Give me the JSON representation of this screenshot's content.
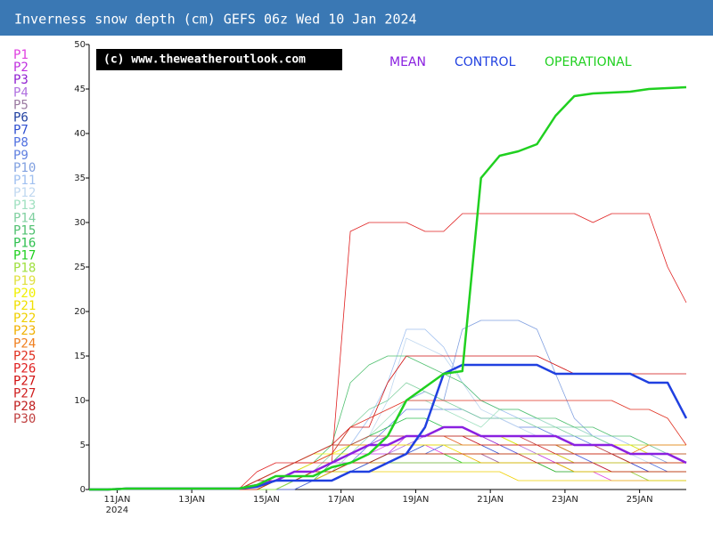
{
  "chart_data": {
    "type": "line",
    "title": "Inverness snow depth (cm) GEFS 06z Wed 10 Jan 2024",
    "watermark": "(c) www.theweatheroutlook.com",
    "year_label": "2024",
    "xlim": [
      10.25,
      26.25
    ],
    "xticks": [
      {
        "value": 11,
        "label": "11JAN"
      },
      {
        "value": 13,
        "label": "13JAN"
      },
      {
        "value": 15,
        "label": "15JAN"
      },
      {
        "value": 17,
        "label": "17JAN"
      },
      {
        "value": 19,
        "label": "19JAN"
      },
      {
        "value": 21,
        "label": "21JAN"
      },
      {
        "value": 23,
        "label": "23JAN"
      },
      {
        "value": 25,
        "label": "25JAN"
      }
    ],
    "ylim": [
      0,
      50
    ],
    "yticks": [
      0,
      5,
      10,
      15,
      20,
      25,
      30,
      35,
      40,
      45,
      50
    ],
    "x": [
      10.25,
      10.75,
      11.25,
      11.75,
      12.25,
      12.75,
      13.25,
      13.75,
      14.25,
      14.75,
      15.25,
      15.75,
      16.25,
      16.75,
      17.25,
      17.75,
      18.25,
      18.75,
      19.25,
      19.75,
      20.25,
      20.75,
      21.25,
      21.75,
      22.25,
      22.75,
      23.25,
      23.75,
      24.25,
      24.75,
      25.25,
      25.75,
      26.25
    ],
    "members": [
      {
        "name": "P1",
        "color": "#e040e0",
        "values": [
          0,
          0,
          0,
          0,
          0,
          0,
          0,
          0,
          0,
          0,
          1,
          1,
          2,
          3,
          4,
          4,
          5,
          5,
          5,
          4,
          4,
          4,
          3,
          3,
          3,
          2,
          2,
          2,
          1,
          1,
          1,
          1,
          1
        ]
      },
      {
        "name": "P2",
        "color": "#c030e0",
        "values": [
          0,
          0,
          0,
          0,
          0,
          0,
          0,
          0,
          0,
          1,
          1,
          2,
          2,
          3,
          3,
          4,
          4,
          6,
          6,
          6,
          5,
          5,
          5,
          4,
          4,
          3,
          3,
          3,
          2,
          2,
          2,
          2,
          2
        ]
      },
      {
        "name": "P3",
        "color": "#9020d0",
        "values": [
          0,
          0,
          0,
          0,
          0,
          0,
          0,
          0,
          0,
          0,
          1,
          2,
          2,
          3,
          5,
          5,
          6,
          6,
          6,
          6,
          6,
          6,
          5,
          5,
          5,
          5,
          4,
          4,
          4,
          3,
          3,
          3,
          3
        ]
      },
      {
        "name": "P4",
        "color": "#b070e0",
        "values": [
          0,
          0,
          0,
          0,
          0,
          0,
          0,
          0,
          0,
          0,
          0,
          1,
          2,
          2,
          3,
          3,
          4,
          5,
          6,
          6,
          6,
          5,
          5,
          5,
          4,
          4,
          4,
          3,
          3,
          3,
          2,
          2,
          2
        ]
      },
      {
        "name": "P5",
        "color": "#9a7aa0",
        "values": [
          0,
          0,
          0,
          0,
          0,
          0,
          0,
          0,
          0,
          0,
          0,
          0,
          1,
          1,
          2,
          3,
          3,
          4,
          4,
          4,
          4,
          4,
          3,
          3,
          3,
          3,
          2,
          2,
          2,
          2,
          1,
          1,
          1
        ]
      },
      {
        "name": "P6",
        "color": "#2040a0",
        "values": [
          0,
          0,
          0,
          0,
          0,
          0,
          0,
          0,
          0,
          0,
          1,
          1,
          2,
          2,
          2,
          3,
          3,
          3,
          3,
          3,
          3,
          3,
          3,
          3,
          3,
          3,
          3,
          3,
          3,
          3,
          3,
          3,
          3
        ]
      },
      {
        "name": "P7",
        "color": "#3050d0",
        "values": [
          0,
          0,
          0,
          0,
          0,
          0,
          0,
          0,
          0,
          0,
          0,
          1,
          1,
          2,
          3,
          3,
          4,
          4,
          5,
          5,
          5,
          5,
          4,
          4,
          4,
          4,
          3,
          3,
          3,
          3,
          2,
          2,
          2
        ]
      },
      {
        "name": "P8",
        "color": "#5070e0",
        "values": [
          0,
          0,
          0,
          0,
          0,
          0,
          0,
          0,
          0,
          0,
          0,
          0,
          1,
          2,
          2,
          3,
          3,
          4,
          4,
          5,
          5,
          5,
          5,
          4,
          4,
          4,
          4,
          3,
          3,
          3,
          3,
          2,
          2
        ]
      },
      {
        "name": "P9",
        "color": "#6080e0",
        "values": [
          0,
          0,
          0,
          0,
          0,
          0,
          0,
          0,
          0,
          0,
          1,
          1,
          1,
          2,
          3,
          5,
          7,
          9,
          9,
          9,
          9,
          8,
          8,
          7,
          7,
          6,
          6,
          5,
          5,
          5,
          4,
          4,
          4
        ]
      },
      {
        "name": "P10",
        "color": "#80a0e0",
        "values": [
          0,
          0,
          0,
          0,
          0,
          0,
          0,
          0,
          0,
          0,
          0,
          1,
          1,
          2,
          3,
          4,
          6,
          10,
          11,
          10,
          18,
          19,
          19,
          19,
          18,
          13,
          8,
          6,
          5,
          4,
          4,
          3,
          3
        ]
      },
      {
        "name": "P11",
        "color": "#a0c0f0",
        "values": [
          0,
          0,
          0,
          0,
          0,
          0,
          0,
          0,
          0,
          0,
          1,
          1,
          2,
          3,
          5,
          8,
          12,
          18,
          18,
          16,
          12,
          10,
          9,
          8,
          8,
          7,
          7,
          6,
          6,
          5,
          5,
          4,
          4
        ]
      },
      {
        "name": "P12",
        "color": "#c0d8f0",
        "values": [
          0,
          0,
          0,
          0,
          0,
          0,
          0,
          0,
          0,
          0,
          0,
          1,
          2,
          3,
          4,
          6,
          10,
          17,
          16,
          15,
          12,
          9,
          8,
          7,
          6,
          6,
          5,
          5,
          4,
          4,
          3,
          3,
          3
        ]
      },
      {
        "name": "P13",
        "color": "#a0e0c0",
        "values": [
          0,
          0,
          0,
          0,
          0,
          0,
          0,
          0,
          0,
          0,
          0,
          1,
          1,
          2,
          4,
          6,
          8,
          10,
          10,
          9,
          8,
          7,
          9,
          9,
          8,
          7,
          7,
          6,
          5,
          5,
          4,
          4,
          4
        ]
      },
      {
        "name": "P14",
        "color": "#80d0a0",
        "values": [
          0,
          0,
          0,
          0,
          0,
          0,
          0,
          0,
          0,
          0,
          1,
          1,
          2,
          4,
          7,
          9,
          10,
          12,
          11,
          10,
          9,
          8,
          8,
          8,
          7,
          7,
          6,
          6,
          5,
          5,
          5,
          4,
          4
        ]
      },
      {
        "name": "P15",
        "color": "#50c070",
        "values": [
          0,
          0,
          0,
          0,
          0,
          0,
          0,
          0,
          0,
          0,
          1,
          2,
          3,
          5,
          12,
          14,
          15,
          15,
          14,
          13,
          12,
          10,
          9,
          9,
          8,
          8,
          7,
          7,
          6,
          6,
          5,
          5,
          5
        ]
      },
      {
        "name": "P16",
        "color": "#30c050",
        "values": [
          0,
          0,
          0,
          0,
          0,
          0,
          0,
          0,
          0,
          0,
          0,
          1,
          1,
          3,
          5,
          6,
          7,
          8,
          8,
          7,
          7,
          6,
          6,
          5,
          5,
          5,
          4,
          4,
          4,
          3,
          3,
          3,
          3
        ]
      },
      {
        "name": "P17",
        "color": "#20d020",
        "values": [
          0,
          0,
          0,
          0,
          0,
          0,
          0,
          0,
          0,
          0,
          1,
          1,
          2,
          2,
          3,
          3,
          4,
          4,
          4,
          4,
          3,
          3,
          3,
          3,
          3,
          2,
          2,
          2,
          2,
          2,
          2,
          2,
          2
        ]
      },
      {
        "name": "P18",
        "color": "#a0e040",
        "values": [
          0,
          0,
          0,
          0,
          0,
          0,
          0,
          0,
          0,
          0,
          0,
          1,
          1,
          2,
          2,
          2,
          3,
          3,
          3,
          3,
          3,
          3,
          3,
          3,
          3,
          3,
          2,
          2,
          2,
          2,
          1,
          1,
          1
        ]
      },
      {
        "name": "P19",
        "color": "#e0e040",
        "values": [
          0,
          0,
          0,
          0,
          0,
          0,
          0,
          0,
          0,
          1,
          2,
          3,
          4,
          5,
          5,
          5,
          5,
          5,
          5,
          5,
          5,
          5,
          5,
          5,
          5,
          5,
          5,
          5,
          5,
          5,
          5,
          5,
          5
        ]
      },
      {
        "name": "P20",
        "color": "#f0f000",
        "values": [
          0,
          0,
          0,
          0,
          0,
          0,
          0,
          0,
          0,
          1,
          2,
          3,
          4,
          4,
          5,
          5,
          5,
          6,
          6,
          6,
          6,
          6,
          6,
          5,
          5,
          5,
          5,
          5,
          5,
          5,
          4,
          4,
          4
        ]
      },
      {
        "name": "P21",
        "color": "#f0e000",
        "values": [
          0,
          0,
          0,
          0,
          0,
          0,
          0,
          0,
          0,
          0,
          1,
          2,
          3,
          4,
          4,
          5,
          5,
          5,
          5,
          5,
          4,
          4,
          4,
          4,
          4,
          4,
          3,
          3,
          3,
          3,
          3,
          3,
          3
        ]
      },
      {
        "name": "P22",
        "color": "#f0d000",
        "values": [
          0,
          0,
          0,
          0,
          0,
          0,
          0,
          0,
          0,
          0,
          1,
          1,
          2,
          2,
          2,
          2,
          2,
          2,
          2,
          2,
          2,
          2,
          2,
          1,
          1,
          1,
          1,
          1,
          1,
          1,
          1,
          1,
          1
        ]
      },
      {
        "name": "P23",
        "color": "#f0b000",
        "values": [
          0,
          0,
          0,
          0,
          0,
          0,
          0,
          0,
          0,
          0,
          1,
          1,
          1,
          2,
          3,
          3,
          3,
          4,
          4,
          4,
          4,
          3,
          3,
          3,
          3,
          3,
          2,
          2,
          2,
          2,
          2,
          2,
          2
        ]
      },
      {
        "name": "P24",
        "color": "#f08020",
        "values": [
          0,
          0,
          0,
          0,
          0,
          0,
          0,
          0,
          0,
          1,
          2,
          3,
          4,
          5,
          5,
          5,
          5,
          6,
          6,
          6,
          5,
          5,
          5,
          5,
          5,
          5,
          4,
          4,
          4,
          4,
          5,
          5,
          5
        ]
      },
      {
        "name": "P25",
        "color": "#e03020",
        "values": [
          0,
          0,
          0,
          0,
          0,
          0,
          0,
          0,
          0,
          1,
          2,
          3,
          3,
          4,
          7,
          8,
          9,
          10,
          10,
          10,
          10,
          10,
          10,
          10,
          10,
          10,
          10,
          10,
          10,
          9,
          9,
          8,
          5
        ]
      },
      {
        "name": "P26",
        "color": "#e02020",
        "values": [
          0,
          0,
          0,
          0,
          0,
          0,
          0,
          0,
          0,
          2,
          3,
          3,
          3,
          3,
          29,
          30,
          30,
          30,
          29,
          29,
          31,
          31,
          31,
          31,
          31,
          31,
          31,
          30,
          31,
          31,
          31,
          25,
          21
        ]
      },
      {
        "name": "P27",
        "color": "#d01010",
        "values": [
          0,
          0,
          0,
          0,
          0,
          0,
          0,
          0,
          0,
          1,
          2,
          3,
          4,
          5,
          7,
          7,
          12,
          15,
          15,
          15,
          15,
          15,
          15,
          15,
          15,
          14,
          13,
          13,
          13,
          13,
          13,
          13,
          13
        ]
      },
      {
        "name": "P27",
        "color": "#d02020",
        "values": [
          0,
          0,
          0,
          0,
          0,
          0,
          0,
          0,
          0,
          1,
          1,
          2,
          2,
          3,
          4,
          5,
          5,
          6,
          6,
          6,
          6,
          5,
          5,
          5,
          5,
          4,
          4,
          4,
          4,
          3,
          3,
          3,
          3
        ]
      },
      {
        "name": "P28",
        "color": "#c02020",
        "values": [
          0,
          0,
          0,
          0,
          0,
          0,
          0,
          0,
          0,
          0,
          1,
          1,
          2,
          2,
          3,
          3,
          4,
          4,
          4,
          4,
          4,
          4,
          4,
          4,
          3,
          3,
          3,
          3,
          2,
          2,
          2,
          2,
          2
        ]
      },
      {
        "name": "P30",
        "color": "#c04040",
        "values": [
          0,
          0,
          0,
          0,
          0,
          0,
          0,
          0,
          0,
          1,
          2,
          3,
          4,
          5,
          5,
          6,
          6,
          6,
          6,
          6,
          6,
          6,
          6,
          6,
          5,
          5,
          5,
          5,
          4,
          4,
          4,
          4,
          4
        ]
      }
    ],
    "series": [
      {
        "name": "MEAN",
        "color": "#8a20e0",
        "values": [
          0,
          0,
          0.1,
          0.1,
          0.1,
          0.1,
          0.1,
          0.1,
          0.1,
          0.5,
          1,
          2,
          2,
          3,
          4,
          5,
          5,
          6,
          6,
          7,
          7,
          6,
          6,
          6,
          6,
          6,
          5,
          5,
          5,
          4,
          4,
          4,
          3
        ]
      },
      {
        "name": "CONTROL",
        "color": "#2040e0",
        "values": [
          0,
          0,
          0.1,
          0.1,
          0.1,
          0.1,
          0.1,
          0.1,
          0.1,
          0.3,
          1,
          1,
          1,
          1,
          2,
          2,
          3,
          4,
          7,
          13,
          14,
          14,
          14,
          14,
          14,
          13,
          13,
          13,
          13,
          13,
          12,
          12,
          8
        ]
      },
      {
        "name": "OPERATIONAL",
        "color": "#20d020",
        "values": [
          0,
          0,
          0.1,
          0.1,
          0.1,
          0.1,
          0.1,
          0.1,
          0.1,
          0.5,
          1.5,
          1.5,
          1.5,
          2.5,
          3,
          4,
          6,
          10,
          11.5,
          13,
          13.3,
          35,
          37.5,
          38,
          38.8,
          42,
          44.2,
          44.5,
          44.6,
          44.7,
          45,
          45.1,
          45.2
        ]
      }
    ]
  }
}
